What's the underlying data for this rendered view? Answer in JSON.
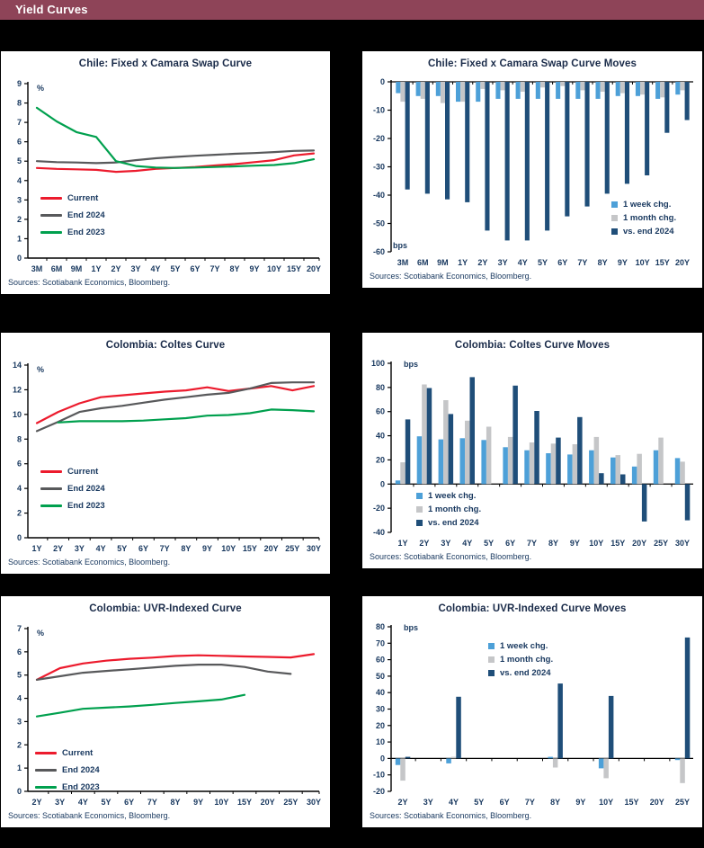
{
  "page": {
    "title": "Yield Curves",
    "header_bg": "#8E4458",
    "page_bg": "#000000",
    "panel_bg": "#FFFFFF",
    "accent_text": "#17375E"
  },
  "charts": [
    {
      "title": "Chile: Fixed x Camara Swap Curve",
      "source": "Sources: Scotiabank  Economics,  Bloomberg.",
      "chart_data": {
        "type": "line",
        "unit": "%",
        "unit_position": "top",
        "legend_position": "middle-left",
        "grid": false,
        "categories": [
          "3M",
          "6M",
          "9M",
          "1Y",
          "2Y",
          "3Y",
          "4Y",
          "5Y",
          "6Y",
          "7Y",
          "8Y",
          "9Y",
          "10Y",
          "15Y",
          "20Y"
        ],
        "ylim": [
          0,
          9
        ],
        "ytick_step": 1,
        "series": [
          {
            "name": "Current",
            "color": "#EC1B2D",
            "values": [
              4.65,
              4.6,
              4.58,
              4.55,
              4.45,
              4.5,
              4.6,
              4.65,
              4.7,
              4.78,
              4.85,
              4.95,
              5.05,
              5.3,
              5.4
            ]
          },
          {
            "name": "End 2024",
            "color": "#58595B",
            "values": [
              5.0,
              4.95,
              4.93,
              4.9,
              4.93,
              5.05,
              5.15,
              5.22,
              5.28,
              5.33,
              5.38,
              5.42,
              5.47,
              5.53,
              5.55
            ]
          },
          {
            "name": "End 2023",
            "color": "#00A04E",
            "values": [
              7.75,
              7.05,
              6.5,
              6.25,
              5.0,
              4.75,
              4.67,
              4.65,
              4.67,
              4.7,
              4.73,
              4.77,
              4.8,
              4.9,
              5.1
            ]
          }
        ]
      }
    },
    {
      "title": "Chile: Fixed x Camara Swap Curve Moves",
      "source": "Sources: Scotiabank  Economics,  Bloomberg.",
      "chart_data": {
        "type": "bar",
        "unit": "bps",
        "unit_position": "bottom",
        "legend_position": "lower-right",
        "grid": false,
        "categories": [
          "3M",
          "6M",
          "9M",
          "1Y",
          "2Y",
          "3Y",
          "4Y",
          "5Y",
          "6Y",
          "7Y",
          "8Y",
          "9Y",
          "10Y",
          "15Y",
          "20Y"
        ],
        "ylim": [
          -60,
          0
        ],
        "ytick_step": 10,
        "series": [
          {
            "name": "1 week chg.",
            "color": "#4DA0D8",
            "values": [
              -4,
              -5,
              -5,
              -7,
              -7,
              -6,
              -6,
              -6,
              -6,
              -6,
              -6,
              -5,
              -5,
              -6,
              -4.5
            ]
          },
          {
            "name": "1 month chg.",
            "color": "#C5C6C8",
            "values": [
              -7,
              -6,
              -7.5,
              -7,
              -2.5,
              -3,
              -3.5,
              -2,
              -1.5,
              -3,
              -3.5,
              -4,
              -4.5,
              -5.5,
              -3
            ]
          },
          {
            "name": "vs. end 2024",
            "color": "#1F4E79",
            "values": [
              -38,
              -39.5,
              -41.5,
              -42.5,
              -52.5,
              -56,
              -56,
              -52.5,
              -47.5,
              -44,
              -39.5,
              -36,
              -33,
              -18,
              -13.5
            ]
          }
        ]
      }
    },
    {
      "title": "Colombia: Coltes Curve",
      "source": "Sources: Scotiabank  Economics,  Bloomberg.",
      "chart_data": {
        "type": "line",
        "unit": "%",
        "unit_position": "top",
        "legend_position": "middle-left",
        "grid": false,
        "categories": [
          "1Y",
          "2Y",
          "3Y",
          "4Y",
          "5Y",
          "6Y",
          "7Y",
          "8Y",
          "9Y",
          "10Y",
          "15Y",
          "20Y",
          "25Y",
          "30Y"
        ],
        "ylim": [
          0,
          14
        ],
        "ytick_step": 2,
        "series": [
          {
            "name": "Current",
            "color": "#EC1B2D",
            "values": [
              9.3,
              10.2,
              10.9,
              11.4,
              11.55,
              11.7,
              11.85,
              11.95,
              12.2,
              11.9,
              12.1,
              12.3,
              11.95,
              12.3
            ]
          },
          {
            "name": "End 2024",
            "color": "#58595B",
            "values": [
              8.65,
              9.4,
              10.2,
              10.5,
              10.7,
              10.95,
              11.2,
              11.4,
              11.6,
              11.75,
              12.1,
              12.55,
              12.6,
              12.6
            ]
          },
          {
            "name": "End 2023",
            "color": "#00A04E",
            "values": [
              null,
              9.35,
              9.45,
              9.45,
              9.45,
              9.5,
              9.6,
              9.7,
              9.9,
              9.95,
              10.1,
              10.4,
              10.35,
              10.25
            ]
          }
        ]
      }
    },
    {
      "title": "Colombia: Coltes Curve Moves",
      "source": "Sources: Scotiabank  Economics,  Bloomberg.",
      "chart_data": {
        "type": "bar",
        "unit": "bps",
        "unit_position": "top",
        "legend_position": "lower-left",
        "grid": false,
        "categories": [
          "1Y",
          "2Y",
          "3Y",
          "4Y",
          "5Y",
          "6Y",
          "7Y",
          "8Y",
          "9Y",
          "10Y",
          "15Y",
          "20Y",
          "25Y",
          "30Y"
        ],
        "ylim": [
          -40,
          100
        ],
        "ytick_step": 20,
        "series": [
          {
            "name": "1 week chg.",
            "color": "#4DA0D8",
            "values": [
              3,
              39.5,
              37,
              38,
              36.5,
              30.5,
              28,
              25.5,
              24.5,
              28,
              22,
              14.5,
              28,
              21.5
            ]
          },
          {
            "name": "1 month chg.",
            "color": "#C5C6C8",
            "values": [
              18,
              82.5,
              69.5,
              52.5,
              47.5,
              39,
              34.5,
              33.5,
              33,
              39,
              24,
              25,
              38.5,
              18.5
            ]
          },
          {
            "name": "vs. end 2024",
            "color": "#1F4E79",
            "values": [
              53.5,
              79.5,
              58,
              88.5,
              null,
              81.5,
              60.5,
              38.5,
              55.5,
              9,
              8,
              -31,
              null,
              -30
            ]
          }
        ]
      }
    },
    {
      "title": "Colombia: UVR-Indexed  Curve",
      "source": "Sources: Scotiabank  Economics,  Bloomberg.",
      "chart_data": {
        "type": "line",
        "unit": "%",
        "unit_position": "top",
        "legend_position": "lower-left",
        "grid": false,
        "categories": [
          "2Y",
          "3Y",
          "4Y",
          "5Y",
          "6Y",
          "7Y",
          "8Y",
          "9Y",
          "10Y",
          "15Y",
          "20Y",
          "25Y",
          "30Y"
        ],
        "ylim": [
          0,
          7
        ],
        "ytick_step": 1,
        "series": [
          {
            "name": "Current",
            "color": "#EC1B2D",
            "values": [
              4.8,
              5.3,
              5.5,
              5.62,
              5.7,
              5.75,
              5.82,
              5.85,
              5.83,
              5.8,
              5.78,
              5.76,
              5.9
            ]
          },
          {
            "name": "End 2024",
            "color": "#58595B",
            "values": [
              4.8,
              4.95,
              5.1,
              5.18,
              5.25,
              5.32,
              5.4,
              5.45,
              5.45,
              5.35,
              5.15,
              5.05,
              null
            ]
          },
          {
            "name": "End 2023",
            "color": "#00A04E",
            "values": [
              3.22,
              3.38,
              3.55,
              3.6,
              3.65,
              3.72,
              3.8,
              3.87,
              3.95,
              4.15,
              null,
              null,
              null
            ]
          }
        ]
      }
    },
    {
      "title": "Colombia: UVR-Indexed  Curve Moves",
      "source": "Sources: Scotiabank  Economics,  Bloomberg.",
      "chart_data": {
        "type": "bar",
        "unit": "bps",
        "unit_position": "top",
        "legend_position": "upper-center",
        "grid": false,
        "categories": [
          "2Y",
          "3Y",
          "4Y",
          "5Y",
          "6Y",
          "7Y",
          "8Y",
          "9Y",
          "10Y",
          "15Y",
          "20Y",
          "25Y"
        ],
        "ylim": [
          -20,
          80
        ],
        "ytick_step": 10,
        "series": [
          {
            "name": "1 week chg.",
            "color": "#4DA0D8",
            "values": [
              -4,
              null,
              -3,
              null,
              null,
              null,
              1,
              null,
              -6,
              null,
              null,
              -1
            ]
          },
          {
            "name": "1 month chg.",
            "color": "#C5C6C8",
            "values": [
              -13.5,
              null,
              1,
              null,
              null,
              null,
              -5.5,
              null,
              -12,
              null,
              null,
              -15
            ]
          },
          {
            "name": "vs. end 2024",
            "color": "#1F4E79",
            "values": [
              1,
              null,
              37.5,
              null,
              null,
              null,
              45.5,
              null,
              38,
              null,
              null,
              73.5
            ]
          }
        ]
      }
    }
  ]
}
